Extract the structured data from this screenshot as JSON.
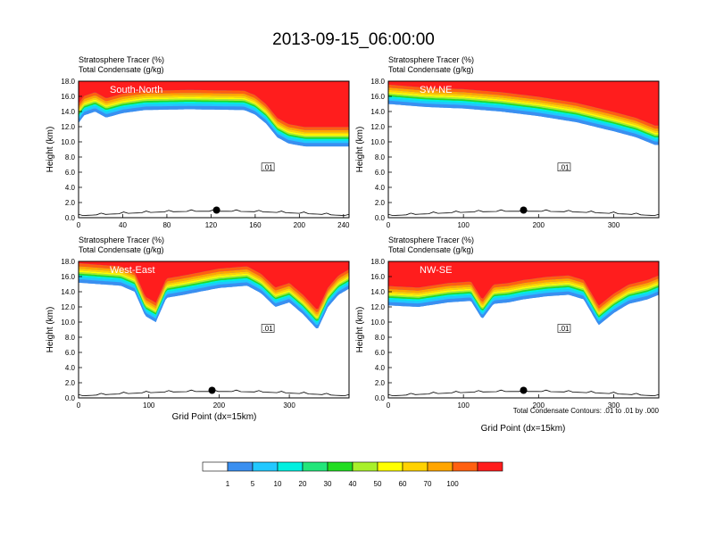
{
  "figure": {
    "title": "2013-09-15_06:00:00",
    "x_axis_title": "Grid Point (dx=15km)",
    "y_axis_title": "Height (km)",
    "header_line1": "Stratosphere Tracer   (%)",
    "header_line2": "Total Condensate   (g/kg)",
    "contour_note": "Total Condensate Contours: .01 to .01 by .000",
    "contour_label": ".01"
  },
  "colorbar": {
    "colors": [
      "#ffffff",
      "#3a8ff0",
      "#22c8ff",
      "#00f0e0",
      "#22e67a",
      "#22dd22",
      "#a8f02a",
      "#ffff00",
      "#ffd200",
      "#ffa500",
      "#ff6010",
      "#ff1d1d"
    ],
    "labels": [
      "1",
      "5",
      "10",
      "20",
      "30",
      "40",
      "50",
      "60",
      "70",
      "100"
    ]
  },
  "chart_data": [
    {
      "type": "heatmap",
      "name": "South-North",
      "xlim": [
        0,
        245
      ],
      "ylim": [
        0,
        18
      ],
      "xticks": [
        0,
        40,
        80,
        120,
        160,
        200,
        240
      ],
      "yticks": [
        0,
        2,
        4,
        6,
        8,
        10,
        12,
        14,
        16,
        18
      ],
      "tropopause_km": [
        [
          0,
          12.5
        ],
        [
          5,
          13.5
        ],
        [
          15,
          14.0
        ],
        [
          25,
          13.2
        ],
        [
          40,
          13.8
        ],
        [
          60,
          14.2
        ],
        [
          100,
          14.3
        ],
        [
          150,
          14.2
        ],
        [
          160,
          13.6
        ],
        [
          170,
          12.4
        ],
        [
          180,
          10.6
        ],
        [
          190,
          9.8
        ],
        [
          205,
          9.4
        ],
        [
          245,
          9.4
        ]
      ],
      "marker": {
        "x": 125,
        "y": 1.0
      }
    },
    {
      "type": "heatmap",
      "name": "SW-NE",
      "xlim": [
        0,
        360
      ],
      "ylim": [
        0,
        18
      ],
      "xticks": [
        0,
        100,
        200,
        300
      ],
      "yticks": [
        0,
        2,
        4,
        6,
        8,
        10,
        12,
        14,
        16,
        18
      ],
      "tropopause_km": [
        [
          0,
          15.0
        ],
        [
          50,
          14.6
        ],
        [
          100,
          14.4
        ],
        [
          150,
          14.0
        ],
        [
          200,
          13.4
        ],
        [
          250,
          12.6
        ],
        [
          300,
          11.4
        ],
        [
          330,
          10.6
        ],
        [
          355,
          9.6
        ]
      ],
      "marker": {
        "x": 180,
        "y": 1.0
      }
    },
    {
      "type": "heatmap",
      "name": "West-East",
      "xlim": [
        0,
        385
      ],
      "ylim": [
        0,
        18
      ],
      "xticks": [
        0,
        100,
        200,
        300
      ],
      "yticks": [
        0,
        2,
        4,
        6,
        8,
        10,
        12,
        14,
        16,
        18
      ],
      "tropopause_km": [
        [
          0,
          15.2
        ],
        [
          60,
          14.8
        ],
        [
          80,
          14.0
        ],
        [
          95,
          10.8
        ],
        [
          110,
          10.0
        ],
        [
          125,
          13.2
        ],
        [
          150,
          13.6
        ],
        [
          200,
          14.5
        ],
        [
          240,
          14.8
        ],
        [
          260,
          13.8
        ],
        [
          280,
          12.0
        ],
        [
          300,
          12.6
        ],
        [
          320,
          11.0
        ],
        [
          340,
          9.0
        ],
        [
          355,
          12.0
        ],
        [
          370,
          13.6
        ],
        [
          385,
          14.4
        ]
      ],
      "marker": {
        "x": 190,
        "y": 1.0
      }
    },
    {
      "type": "heatmap",
      "name": "NW-SE",
      "xlim": [
        0,
        360
      ],
      "ylim": [
        0,
        18
      ],
      "xticks": [
        0,
        100,
        200,
        300
      ],
      "yticks": [
        0,
        2,
        4,
        6,
        8,
        10,
        12,
        14,
        16,
        18
      ],
      "tropopause_km": [
        [
          0,
          12.2
        ],
        [
          40,
          12.0
        ],
        [
          80,
          12.6
        ],
        [
          110,
          12.8
        ],
        [
          125,
          10.4
        ],
        [
          140,
          12.4
        ],
        [
          160,
          12.6
        ],
        [
          180,
          13.0
        ],
        [
          210,
          13.4
        ],
        [
          240,
          13.6
        ],
        [
          260,
          13.0
        ],
        [
          280,
          9.6
        ],
        [
          300,
          11.2
        ],
        [
          320,
          12.4
        ],
        [
          345,
          13.0
        ],
        [
          360,
          13.6
        ]
      ],
      "marker": {
        "x": 180,
        "y": 1.0
      }
    }
  ]
}
